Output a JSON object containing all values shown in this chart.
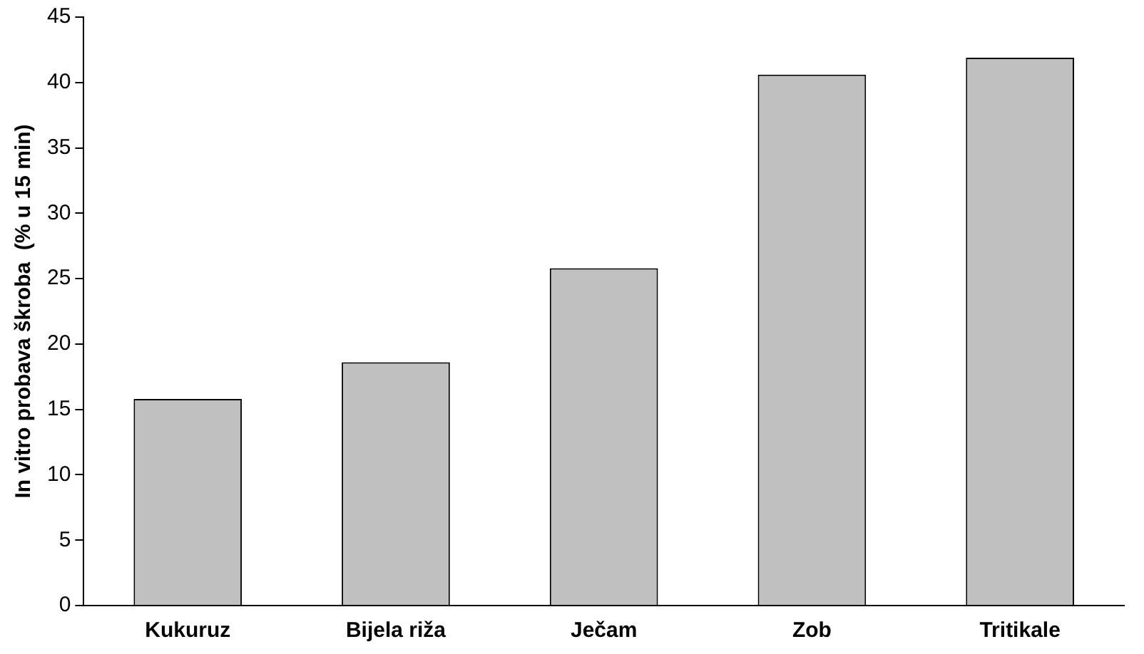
{
  "chart_data": {
    "type": "bar",
    "ylabel": "In vitro probava škroba  (% u 15 min)",
    "categories": [
      "Kukuruz",
      "Bijela riža",
      "Ječam",
      "Zob",
      "Tritikale"
    ],
    "values": [
      15.8,
      18.6,
      25.8,
      40.6,
      41.9
    ],
    "color": "#c0c0c0",
    "ylim": [
      0,
      45
    ],
    "yticks": [
      0,
      5,
      10,
      15,
      20,
      25,
      30,
      35,
      40,
      45
    ],
    "grid": false,
    "legend": false
  }
}
